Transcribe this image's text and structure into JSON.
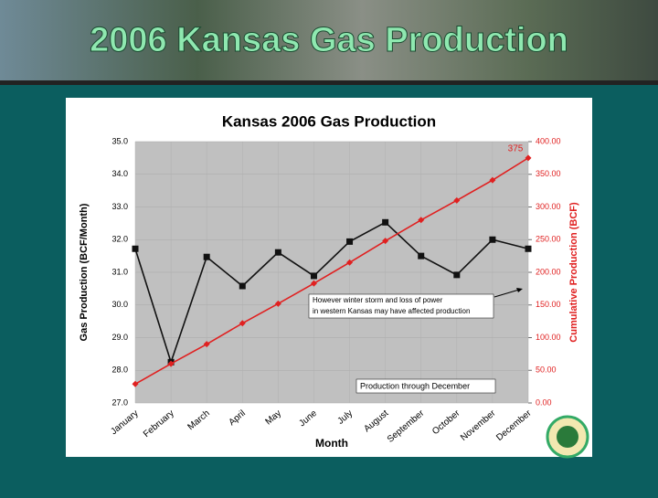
{
  "slide_title": "2006 Kansas Gas Production",
  "chart_data": {
    "type": "line",
    "title": "Kansas 2006 Gas Production",
    "categories": [
      "January",
      "February",
      "March",
      "April",
      "May",
      "June",
      "July",
      "August",
      "September",
      "October",
      "November",
      "December"
    ],
    "x_label": "Month",
    "y_label": "Gas Production (BCF/Month)",
    "y2_label": "Cumulative Production (BCF)",
    "series": [
      {
        "name": "Gas Production",
        "color": "#111111",
        "values": [
          31.72,
          28.25,
          31.47,
          30.58,
          31.61,
          30.89,
          31.94,
          32.53,
          31.5,
          30.92,
          32.0,
          31.72
        ]
      },
      {
        "name": "Cumulative Production",
        "color": "#e02020",
        "axis": "y2",
        "values": [
          29,
          60,
          90,
          122,
          152,
          183,
          215,
          248,
          280,
          310,
          341,
          375
        ]
      }
    ],
    "ylim": [
      27,
      35
    ],
    "yticks": [
      {
        "value": 35,
        "label": "35.0"
      },
      {
        "value": 34,
        "label": "34.0"
      },
      {
        "value": 33,
        "label": "33.0"
      },
      {
        "value": 32,
        "label": "32.0"
      },
      {
        "value": 31,
        "label": "31.0"
      },
      {
        "value": 30,
        "label": "30.0"
      },
      {
        "value": 29,
        "label": "29.0"
      },
      {
        "value": 28,
        "label": "28.0"
      },
      {
        "value": 27,
        "label": "27.0"
      }
    ],
    "y2lim": [
      0,
      400
    ],
    "y2ticks": [
      {
        "value": 400,
        "label": "400.00"
      },
      {
        "value": 350,
        "label": "350.00"
      },
      {
        "value": 300,
        "label": "300.00"
      },
      {
        "value": 250,
        "label": "250.00"
      },
      {
        "value": 200,
        "label": "200.00"
      },
      {
        "value": 150,
        "label": "150.00"
      },
      {
        "value": 100,
        "label": "100.00"
      },
      {
        "value": 50,
        "label": "50.00"
      },
      {
        "value": 0,
        "label": "0.00"
      }
    ],
    "grid": true,
    "annotations": [
      "However winter storm and loss of power",
      "in western Kansas may have affected production",
      "Production through December"
    ]
  }
}
